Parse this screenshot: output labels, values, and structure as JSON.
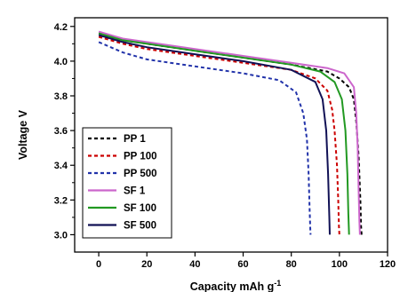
{
  "chart_data": {
    "type": "line",
    "title": "",
    "xlabel": "Capacity mAh g",
    "xlabel_superscript": "-1",
    "ylabel": "Voltage V",
    "xlim": [
      -10,
      120
    ],
    "ylim": [
      2.9,
      4.25
    ],
    "xticks": [
      0,
      20,
      40,
      60,
      80,
      100,
      120
    ],
    "yticks": [
      3.0,
      3.2,
      3.4,
      3.6,
      3.8,
      4.0,
      4.2
    ],
    "ytick_labels": [
      "3.0",
      "3.2",
      "3.4",
      "3.6",
      "3.8",
      "4.0",
      "4.2"
    ],
    "grid": false,
    "legend_position": "lower-left",
    "series": [
      {
        "name": "PP 1",
        "color": "#000000",
        "dash": "dashed",
        "x": [
          0,
          10,
          20,
          40,
          60,
          80,
          95,
          100,
          104,
          106,
          107,
          108,
          108.7,
          109,
          109.2
        ],
        "y": [
          4.16,
          4.12,
          4.1,
          4.06,
          4.02,
          3.98,
          3.94,
          3.9,
          3.85,
          3.78,
          3.65,
          3.45,
          3.2,
          3.05,
          3.0
        ]
      },
      {
        "name": "PP 100",
        "color": "#cc0000",
        "dash": "dashed",
        "x": [
          0,
          10,
          20,
          40,
          60,
          80,
          90,
          95,
          97,
          98,
          99,
          99.5,
          99.8,
          100
        ],
        "y": [
          4.14,
          4.1,
          4.07,
          4.03,
          3.99,
          3.95,
          3.9,
          3.83,
          3.72,
          3.6,
          3.4,
          3.2,
          3.05,
          3.0
        ]
      },
      {
        "name": "PP 500",
        "color": "#2233aa",
        "dash": "dashed",
        "x": [
          0,
          10,
          20,
          40,
          60,
          75,
          82,
          85,
          86.5,
          87.2,
          87.6,
          87.9,
          88
        ],
        "y": [
          4.11,
          4.05,
          4.01,
          3.97,
          3.93,
          3.89,
          3.82,
          3.7,
          3.55,
          3.35,
          3.15,
          3.03,
          3.0
        ]
      },
      {
        "name": "SF 1",
        "color": "#cc66cc",
        "dash": "solid",
        "x": [
          0,
          10,
          20,
          40,
          60,
          80,
          95,
          102,
          106,
          107,
          107.6,
          108,
          108.3,
          108.5
        ],
        "y": [
          4.17,
          4.13,
          4.11,
          4.07,
          4.03,
          3.99,
          3.96,
          3.93,
          3.85,
          3.7,
          3.5,
          3.25,
          3.08,
          3.0
        ]
      },
      {
        "name": "SF 100",
        "color": "#229922",
        "dash": "solid",
        "x": [
          0,
          10,
          20,
          40,
          60,
          80,
          92,
          98,
          101,
          102.5,
          103.3,
          103.7,
          104
        ],
        "y": [
          4.16,
          4.12,
          4.1,
          4.06,
          4.02,
          3.98,
          3.94,
          3.88,
          3.78,
          3.6,
          3.35,
          3.12,
          3.0
        ]
      },
      {
        "name": "SF 500",
        "color": "#111155",
        "dash": "solid",
        "x": [
          0,
          10,
          20,
          40,
          60,
          80,
          90,
          93,
          94.5,
          95.3,
          95.8,
          96
        ],
        "y": [
          4.15,
          4.11,
          4.08,
          4.04,
          4.0,
          3.95,
          3.88,
          3.78,
          3.6,
          3.35,
          3.1,
          3.0
        ]
      }
    ]
  }
}
